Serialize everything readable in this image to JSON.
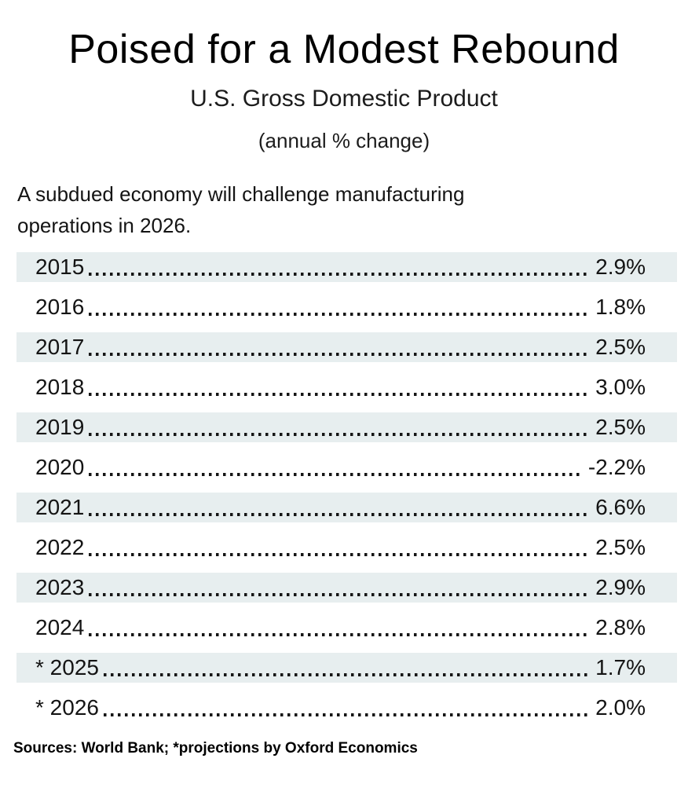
{
  "header": {
    "title": "Poised for a Modest Rebound",
    "subtitle": "U.S. Gross Domestic Product",
    "caption": "(annual % change)"
  },
  "intro": {
    "lines": [
      "A subdued economy will challenge manufacturing",
      "operations in 2026."
    ]
  },
  "chart_data": {
    "type": "table",
    "title": "Poised for a Modest Rebound",
    "subtitle": "U.S. Gross Domestic Product",
    "unit": "annual % change",
    "series_name": "U.S. GDP annual % change",
    "years": [
      2015,
      2016,
      2017,
      2018,
      2019,
      2020,
      2021,
      2022,
      2023,
      2024,
      2025,
      2026
    ],
    "values": [
      2.9,
      1.8,
      2.5,
      3.0,
      2.5,
      -2.2,
      6.6,
      2.5,
      2.9,
      2.8,
      1.7,
      2.0
    ],
    "projected_years": [
      2025,
      2026
    ],
    "rows": [
      {
        "label": "2015",
        "value": "2.9%",
        "projected": false
      },
      {
        "label": "2016",
        "value": "1.8%",
        "projected": false
      },
      {
        "label": "2017",
        "value": "2.5%",
        "projected": false
      },
      {
        "label": "2018",
        "value": "3.0%",
        "projected": false
      },
      {
        "label": "2019",
        "value": "2.5%",
        "projected": false
      },
      {
        "label": "2020",
        "value": "-2.2%",
        "projected": false
      },
      {
        "label": "2021",
        "value": "6.6%",
        "projected": false
      },
      {
        "label": "2022",
        "value": "2.5%",
        "projected": false
      },
      {
        "label": "2023",
        "value": "2.9%",
        "projected": false
      },
      {
        "label": "2024",
        "value": "2.8%",
        "projected": false
      },
      {
        "label": "* 2025",
        "value": "1.7%",
        "projected": true
      },
      {
        "label": "* 2026",
        "value": "2.0%",
        "projected": true
      }
    ]
  },
  "footer": {
    "source": "Sources: World Bank; *projections by Oxford Economics"
  },
  "colors": {
    "row_shade": "#e7eeef",
    "text": "#141414"
  }
}
